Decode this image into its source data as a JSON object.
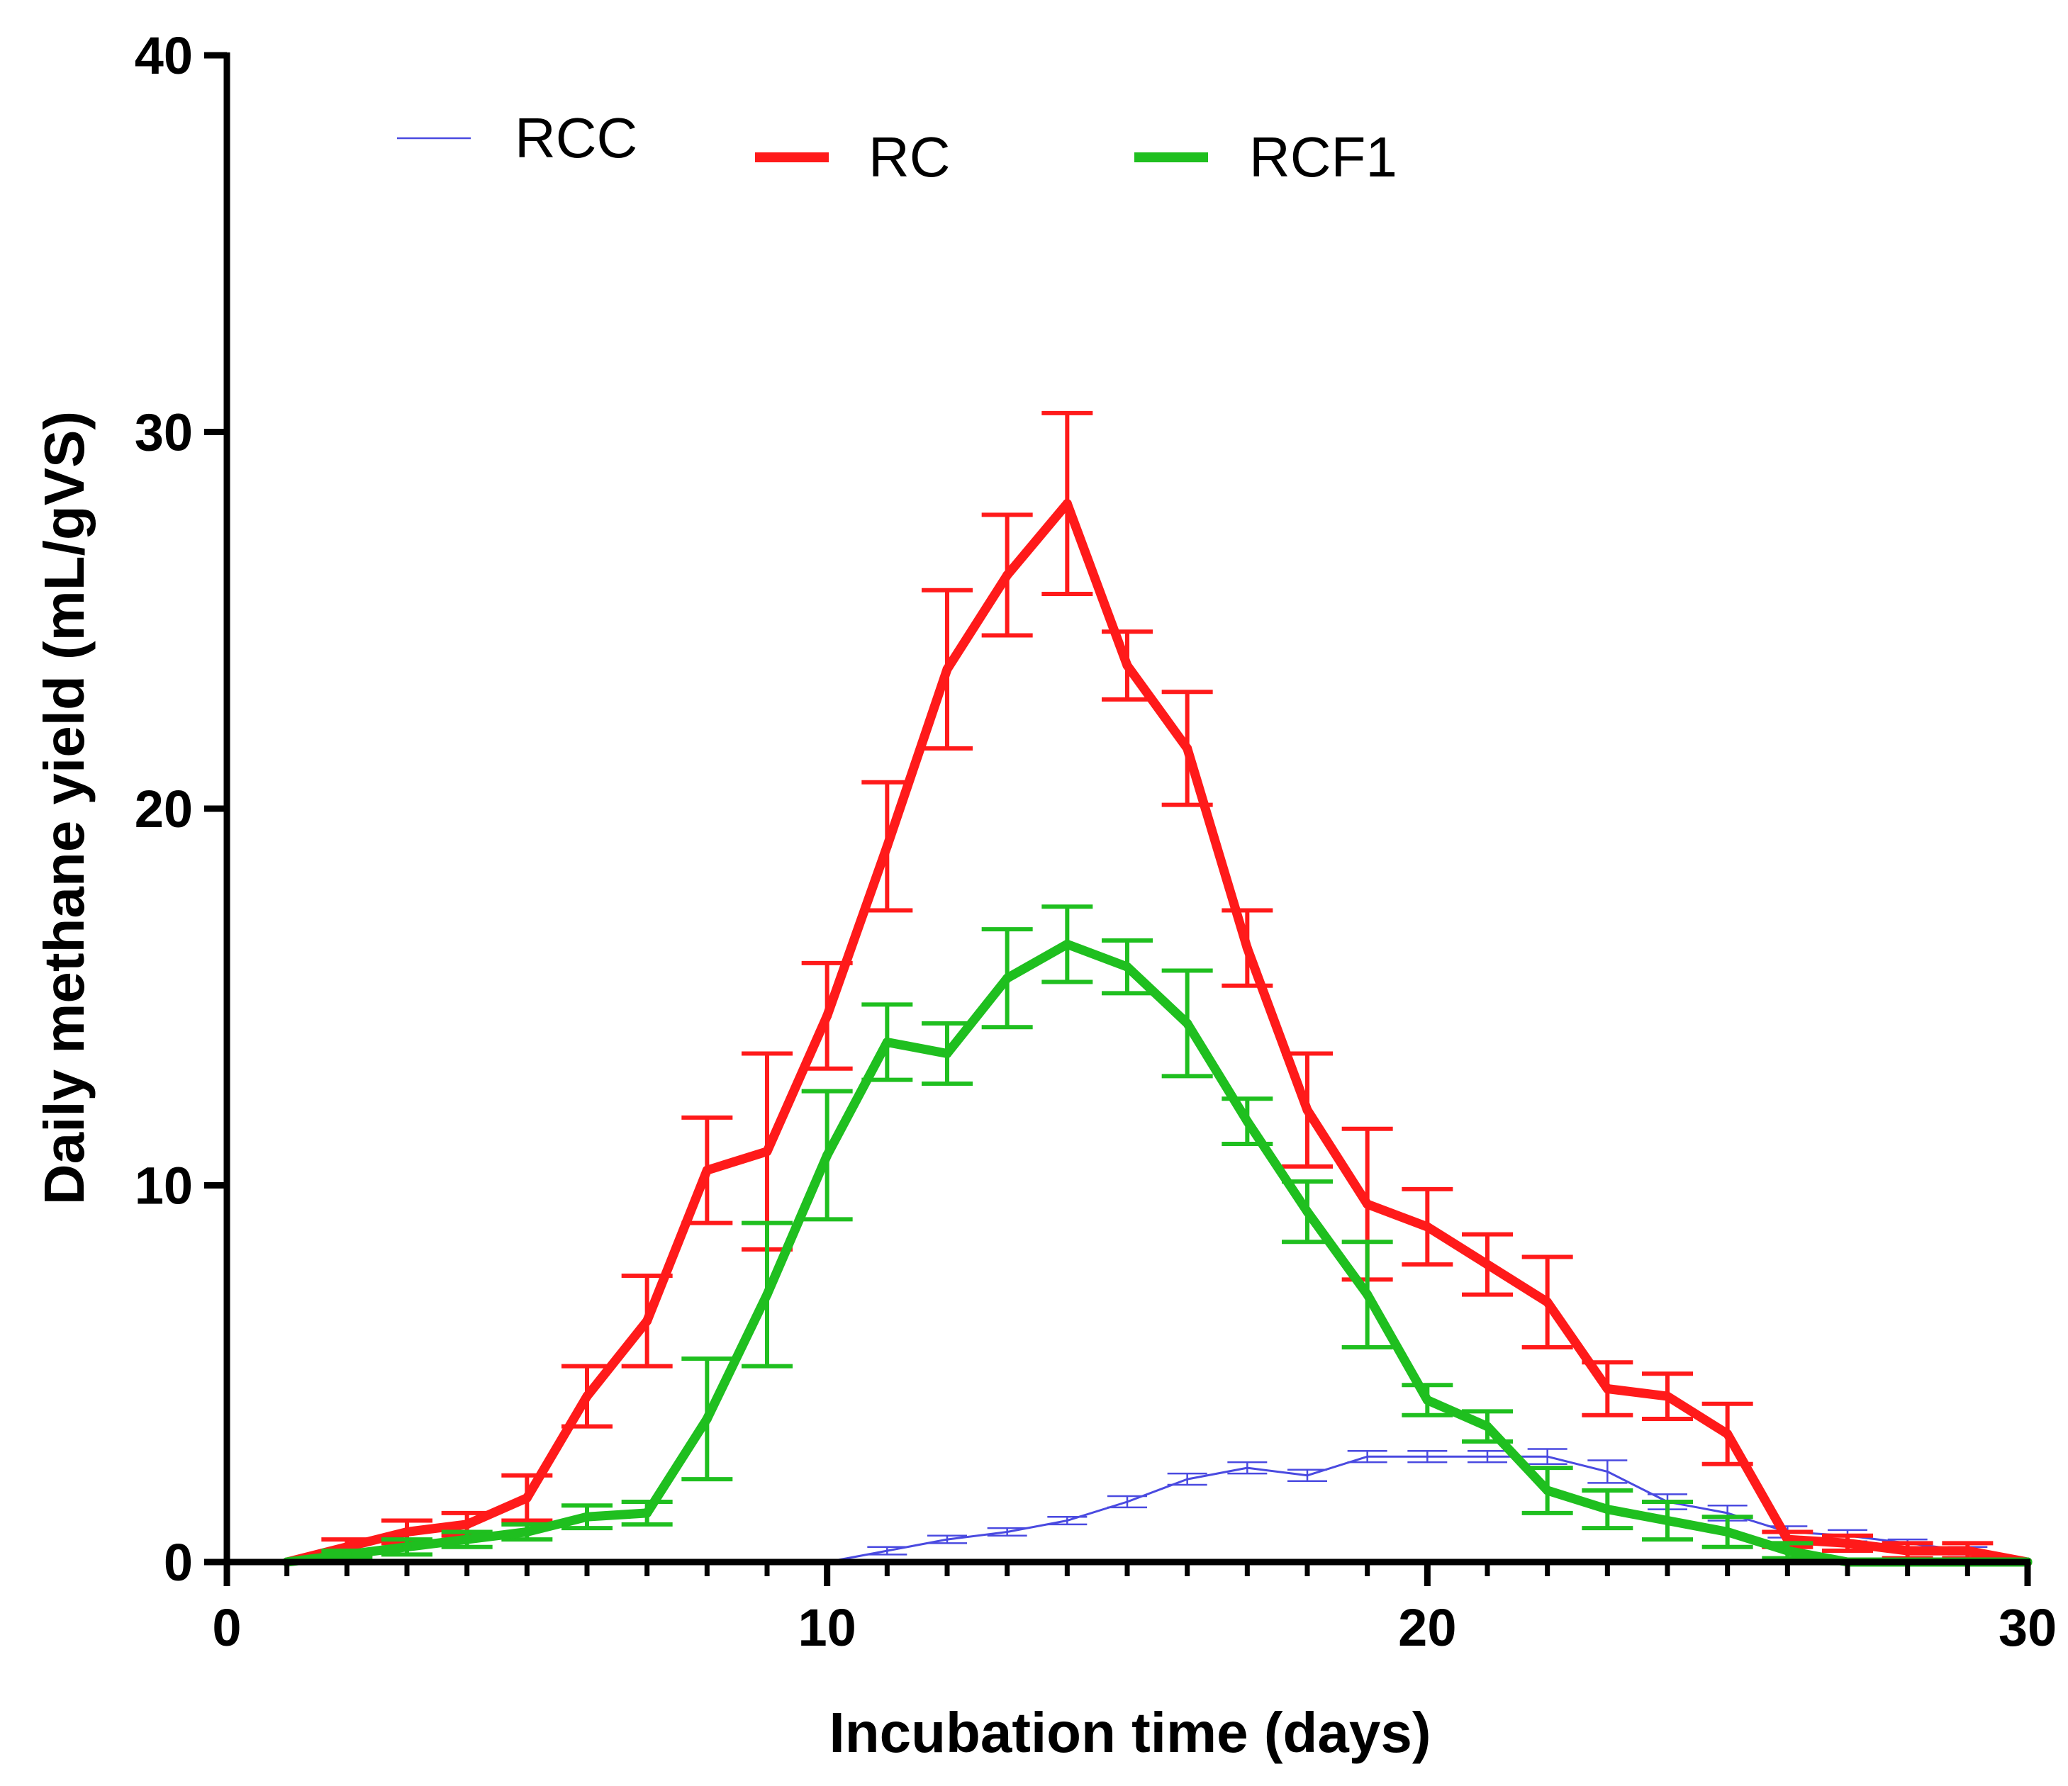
{
  "chart_data": {
    "type": "line",
    "title": "",
    "xlabel": "Incubation time (days)",
    "ylabel": "Daily methane yield (mL/gVS)",
    "xlim": [
      0,
      30
    ],
    "ylim": [
      0,
      40
    ],
    "xticks": [
      0,
      10,
      20,
      30
    ],
    "yticks": [
      0,
      10,
      20,
      30,
      40
    ],
    "x_minor_step": 1,
    "grid": false,
    "legend": "top",
    "x": [
      1,
      2,
      3,
      4,
      5,
      6,
      7,
      8,
      9,
      10,
      11,
      12,
      13,
      14,
      15,
      16,
      17,
      18,
      19,
      20,
      21,
      22,
      23,
      24,
      25,
      26,
      27,
      28,
      29,
      30
    ],
    "series": [
      {
        "name": "RCC",
        "color": "#4a4ae0",
        "width": "thin",
        "values": [
          0,
          0,
          0,
          0,
          0,
          0,
          0,
          0,
          0,
          0,
          0.3,
          0.6,
          0.8,
          1.1,
          1.6,
          2.2,
          2.5,
          2.3,
          2.8,
          2.8,
          2.8,
          2.8,
          2.4,
          1.6,
          1.3,
          0.8,
          0.7,
          0.5,
          0.3,
          0
        ],
        "errors": [
          0,
          0,
          0,
          0,
          0,
          0,
          0,
          0,
          0,
          0,
          0.1,
          0.1,
          0.1,
          0.1,
          0.15,
          0.15,
          0.15,
          0.15,
          0.15,
          0.15,
          0.15,
          0.2,
          0.3,
          0.2,
          0.2,
          0.15,
          0.15,
          0.1,
          0.1,
          0
        ]
      },
      {
        "name": "RC",
        "color": "#ff1a1a",
        "width": "thick",
        "values": [
          0,
          0.4,
          0.8,
          1.0,
          1.7,
          4.4,
          6.4,
          10.4,
          10.9,
          14.5,
          19.0,
          23.7,
          26.2,
          28.1,
          23.8,
          21.6,
          16.3,
          12.0,
          9.5,
          8.9,
          7.9,
          6.9,
          4.6,
          4.4,
          3.4,
          0.6,
          0.5,
          0.3,
          0.3,
          0
        ],
        "errors": [
          0,
          0.2,
          0.3,
          0.3,
          0.6,
          0.8,
          1.2,
          1.4,
          2.6,
          1.4,
          1.7,
          2.1,
          1.6,
          2.4,
          0.9,
          1.5,
          1.0,
          1.5,
          2.0,
          1.0,
          0.8,
          1.2,
          0.7,
          0.6,
          0.8,
          0.2,
          0.2,
          0.2,
          0.2,
          0
        ]
      },
      {
        "name": "RCF1",
        "color": "#1fbf1f",
        "width": "thick",
        "values": [
          0,
          0.2,
          0.4,
          0.6,
          0.8,
          1.2,
          1.3,
          3.8,
          7.1,
          10.8,
          13.8,
          13.5,
          15.5,
          16.4,
          15.8,
          14.3,
          11.7,
          9.3,
          7.1,
          4.3,
          3.6,
          1.9,
          1.4,
          1.1,
          0.8,
          0.3,
          0,
          0,
          0,
          0
        ],
        "errors": [
          0,
          0.1,
          0.2,
          0.2,
          0.2,
          0.3,
          0.3,
          1.6,
          1.9,
          1.7,
          1.0,
          0.8,
          1.3,
          1.0,
          0.7,
          1.4,
          0.6,
          0.8,
          1.4,
          0.4,
          0.4,
          0.6,
          0.5,
          0.5,
          0.4,
          0.2,
          0,
          0,
          0,
          0
        ]
      }
    ]
  }
}
